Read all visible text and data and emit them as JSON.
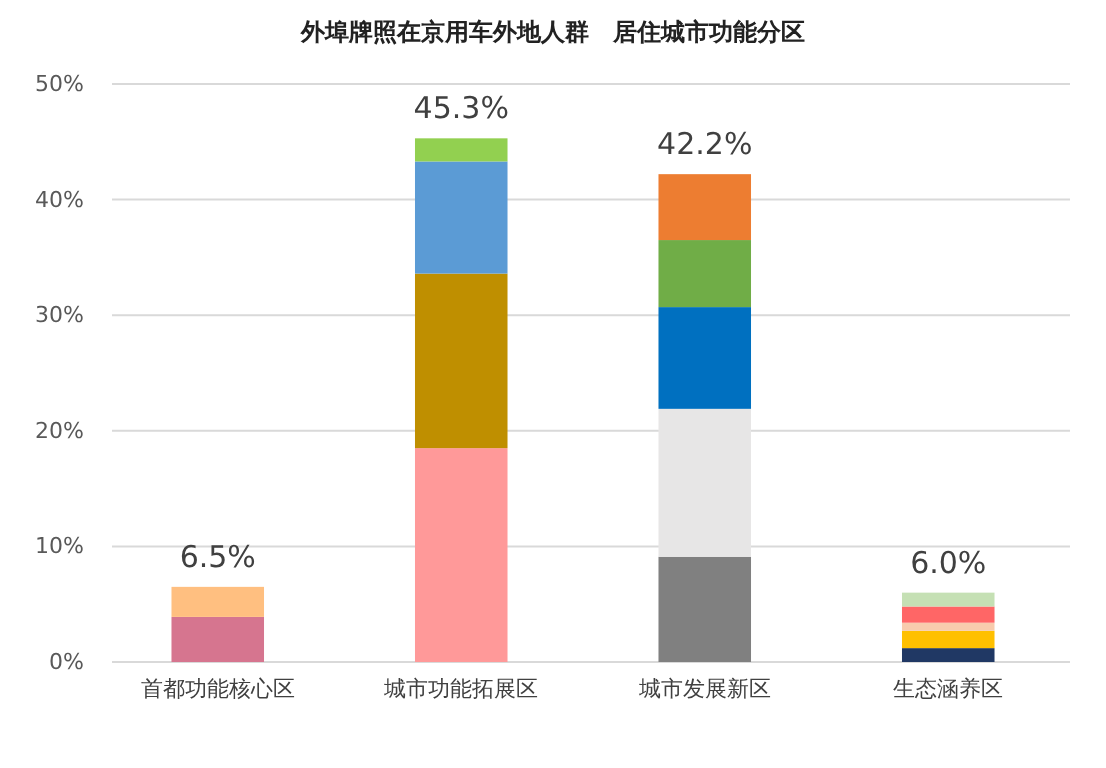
{
  "chart_data": {
    "type": "bar",
    "stacked": true,
    "title": "外埠牌照在京用车外地人群　居住城市功能分区",
    "categories": [
      "首都功能核心区",
      "城市功能拓展区",
      "城市发展新区",
      "生态涵养区"
    ],
    "series": [
      {
        "values": [
          3.9,
          18.5,
          9.1,
          1.2
        ],
        "colors": [
          "#d6758f",
          "#ff9999",
          "#808080",
          "#203864"
        ]
      },
      {
        "values": [
          2.6,
          15.1,
          12.8,
          1.5
        ],
        "colors": [
          "#ffbf80",
          "#bf8f00",
          "#e7e6e6",
          "#ffc000"
        ]
      },
      {
        "values": [
          null,
          9.7,
          8.8,
          0.7
        ],
        "colors": [
          null,
          "#5b9bd5",
          "#0070c0",
          "#f8cbad"
        ]
      },
      {
        "values": [
          null,
          2.0,
          5.8,
          1.4
        ],
        "colors": [
          null,
          "#92d050",
          "#70ad47",
          "#ff6666"
        ]
      },
      {
        "values": [
          null,
          null,
          5.7,
          1.2
        ],
        "colors": [
          null,
          null,
          "#ed7d31",
          "#c5e0b4"
        ]
      }
    ],
    "totals": [
      "6.5%",
      "45.3%",
      "42.2%",
      "6.0%"
    ],
    "ylim": [
      0,
      50
    ],
    "yticks": [
      {
        "value": 0,
        "label": "0%"
      },
      {
        "value": 10,
        "label": "10%"
      },
      {
        "value": 20,
        "label": "20%"
      },
      {
        "value": 30,
        "label": "30%"
      },
      {
        "value": 40,
        "label": "40%"
      },
      {
        "value": 50,
        "label": "50%"
      }
    ],
    "grid": "y"
  }
}
